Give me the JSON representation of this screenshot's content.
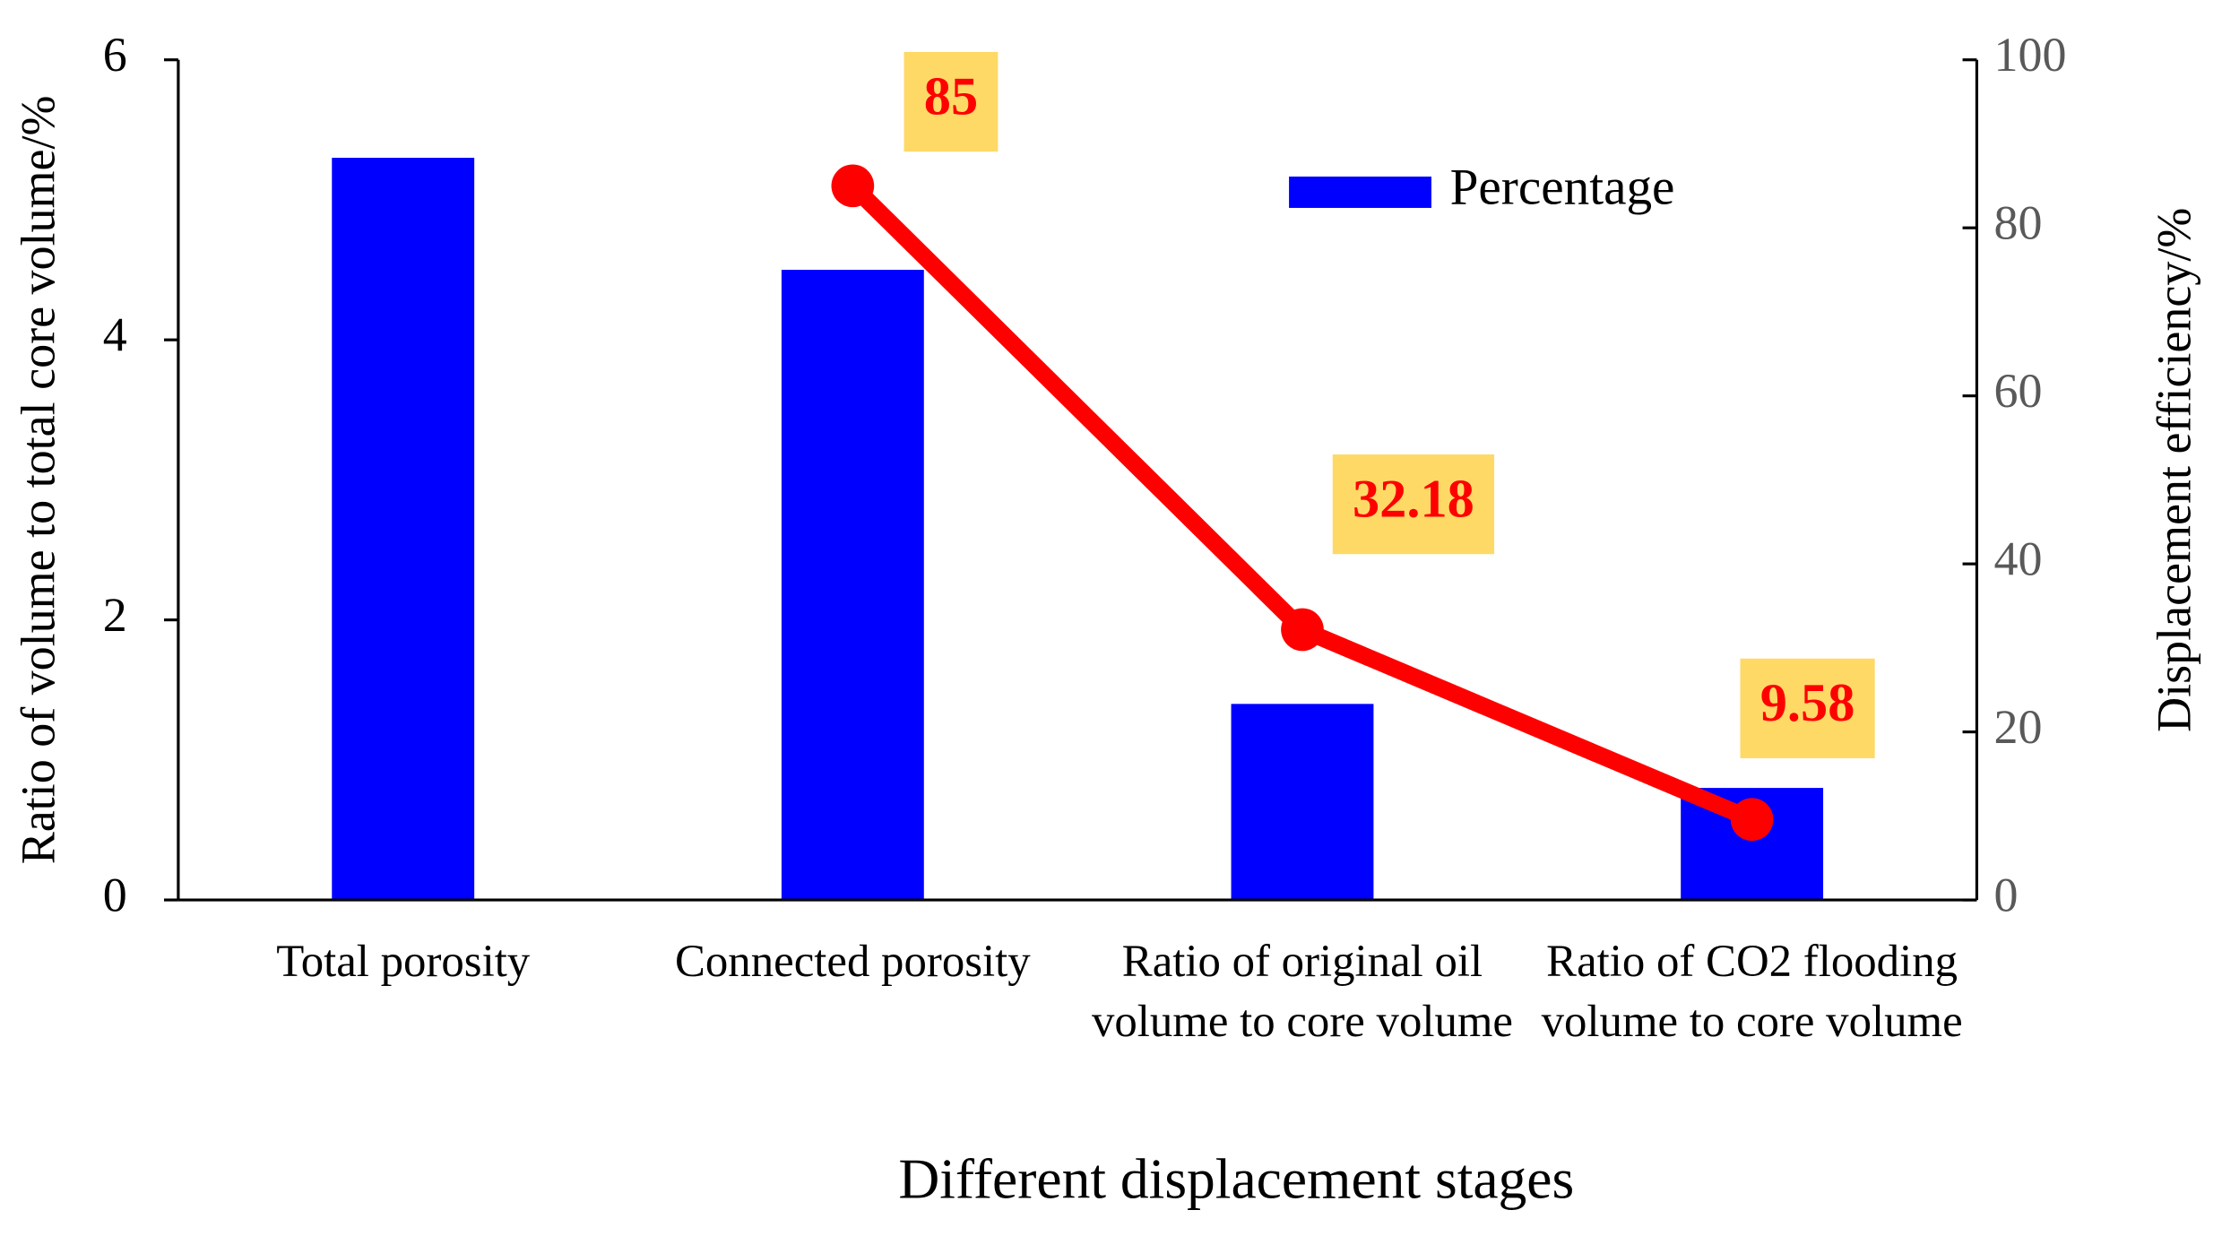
{
  "chart_data": {
    "type": "bar",
    "categories": [
      "Total porosity",
      "Connected porosity",
      "Ratio of original oil volume to core volume",
      "Ratio of CO2 flooding volume to core volume"
    ],
    "series": [
      {
        "name": "Percentage",
        "color": "#0000ff",
        "values": [
          5.3,
          4.5,
          1.4,
          0.8
        ]
      },
      {
        "type": "line",
        "axis": "y2",
        "color": "#ff0000",
        "values": [
          null,
          85,
          32.18,
          9.58
        ],
        "data_labels": true,
        "label_background": "#ffd966"
      }
    ],
    "x_label": "Different displacement stages",
    "y_label": "Ratio of volume to total core volume/%",
    "y2_label": "Displacement efficiency/%",
    "ylim": [
      0,
      6
    ],
    "yticks": [
      0,
      2,
      4,
      6
    ],
    "y2lim": [
      0,
      100
    ],
    "y2ticks": [
      0,
      20,
      40,
      60,
      80,
      100
    ],
    "legend": "upper-right",
    "grid": false
  }
}
